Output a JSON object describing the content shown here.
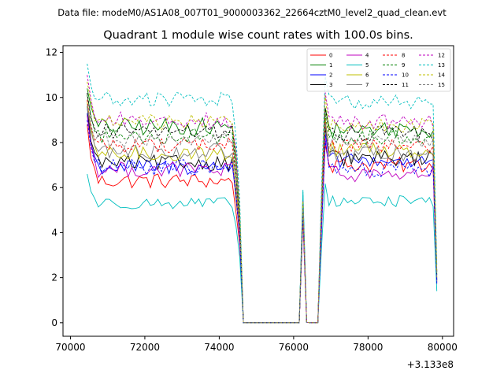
{
  "figure": {
    "suptitle": "Data file: modeM0/AS1A08_007T01_9000003362_22664cztM0_level2_quad_clean.evt"
  },
  "chart_data": {
    "type": "line",
    "title": "Quadrant 1 module wise count rates with 100.0s bins.",
    "xlabel": "",
    "ylabel": "",
    "x_offset_label": "+3.133e8",
    "x_unit_offset": 313300000,
    "xlim": [
      69800,
      80300
    ],
    "ylim": [
      -0.6,
      12.3
    ],
    "x_ticks": [
      70000,
      72000,
      74000,
      76000,
      78000,
      80000
    ],
    "x_tick_labels": [
      "70000",
      "72000",
      "74000",
      "76000",
      "78000",
      "80000"
    ],
    "y_ticks": [
      0,
      2,
      4,
      6,
      8,
      10,
      12
    ],
    "y_tick_labels": [
      "0",
      "2",
      "4",
      "6",
      "8",
      "10",
      "12"
    ],
    "grid": false,
    "legend_position": "upper-right",
    "legend_columns": 4,
    "bin_seconds": 100,
    "x_start": 70450,
    "x_end": 79850,
    "series": [
      {
        "name": "0",
        "color": "#ff0000",
        "dash": "solid",
        "level1": 6.3,
        "level2": 7.0,
        "start": 8.8,
        "peak": 4.6,
        "amp": 0.35
      },
      {
        "name": "1",
        "color": "#008000",
        "dash": "solid",
        "level1": 8.7,
        "level2": 8.6,
        "start": 10.4,
        "peak": 5.6,
        "amp": 0.4
      },
      {
        "name": "2",
        "color": "#0000ff",
        "dash": "solid",
        "level1": 6.9,
        "level2": 7.2,
        "start": 9.3,
        "peak": 4.9,
        "amp": 0.35
      },
      {
        "name": "3",
        "color": "#000000",
        "dash": "solid",
        "level1": 7.1,
        "level2": 7.3,
        "start": 9.6,
        "peak": 5.0,
        "amp": 0.35
      },
      {
        "name": "4",
        "color": "#bf00bf",
        "dash": "solid",
        "level1": 6.8,
        "level2": 6.6,
        "start": 9.2,
        "peak": 4.8,
        "amp": 0.35
      },
      {
        "name": "5",
        "color": "#00bfbf",
        "dash": "solid",
        "level1": 5.3,
        "level2": 5.4,
        "start": 6.6,
        "peak": 5.9,
        "amp": 0.25
      },
      {
        "name": "6",
        "color": "#bfbf00",
        "dash": "solid",
        "level1": 7.5,
        "level2": 7.7,
        "start": 9.8,
        "peak": 5.1,
        "amp": 0.35
      },
      {
        "name": "7",
        "color": "#808080",
        "dash": "solid",
        "level1": 7.6,
        "level2": 7.5,
        "start": 9.6,
        "peak": 5.0,
        "amp": 0.35
      },
      {
        "name": "8",
        "color": "#ff0000",
        "dash": "dashed",
        "level1": 7.9,
        "level2": 7.8,
        "start": 9.9,
        "peak": 5.1,
        "amp": 0.35
      },
      {
        "name": "9",
        "color": "#008000",
        "dash": "dashed",
        "level1": 8.3,
        "level2": 8.2,
        "start": 10.1,
        "peak": 5.3,
        "amp": 0.35
      },
      {
        "name": "10",
        "color": "#0000ff",
        "dash": "dashed",
        "level1": 6.9,
        "level2": 6.8,
        "start": 9.0,
        "peak": 4.8,
        "amp": 0.35
      },
      {
        "name": "11",
        "color": "#000000",
        "dash": "dashed",
        "level1": 8.5,
        "level2": 8.4,
        "start": 10.2,
        "peak": 5.3,
        "amp": 0.35
      },
      {
        "name": "12",
        "color": "#bf00bf",
        "dash": "dashed",
        "level1": 9.0,
        "level2": 8.9,
        "start": 11.0,
        "peak": 5.5,
        "amp": 0.35
      },
      {
        "name": "13",
        "color": "#00bfbf",
        "dash": "dashed",
        "level1": 9.9,
        "level2": 9.8,
        "start": 11.5,
        "peak": 5.8,
        "amp": 0.35
      },
      {
        "name": "14",
        "color": "#bfbf00",
        "dash": "dashed",
        "level1": 8.9,
        "level2": 8.8,
        "start": 10.7,
        "peak": 5.4,
        "amp": 0.35
      },
      {
        "name": "15",
        "color": "#808080",
        "dash": "dashed",
        "level1": 8.1,
        "level2": 8.0,
        "start": 9.7,
        "peak": 5.1,
        "amp": 0.35
      }
    ]
  }
}
